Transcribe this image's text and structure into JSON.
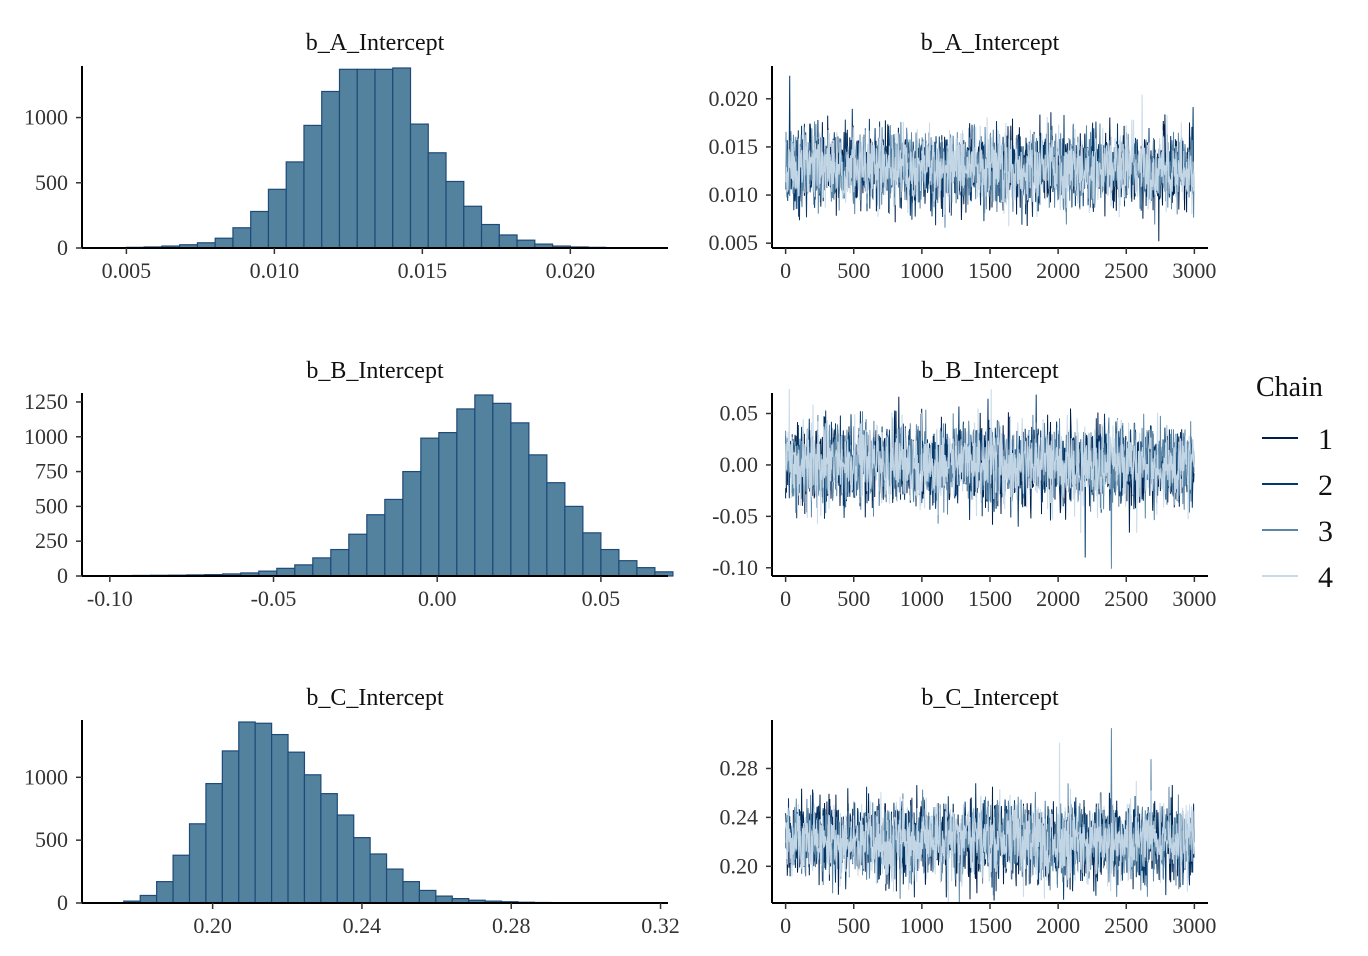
{
  "colors": {
    "hist_fill": "#53829f",
    "hist_border": "#1f4a78",
    "chain_1": "#011f4b",
    "chain_2": "#03396c",
    "chain_3": "#5b86a6",
    "chain_4": "#c8dae9"
  },
  "legend": {
    "title": "Chain",
    "entries": [
      {
        "label": "1",
        "color": "#011f4b"
      },
      {
        "label": "2",
        "color": "#03396c"
      },
      {
        "label": "3",
        "color": "#5b86a6"
      },
      {
        "label": "4",
        "color": "#c8dae9"
      }
    ]
  },
  "chart_data": [
    {
      "type": "bar",
      "title": "b_A_Intercept",
      "bin_start": 0.0044,
      "bin_width": 0.0006,
      "values": [
        3,
        5,
        8,
        15,
        25,
        40,
        75,
        155,
        280,
        450,
        660,
        940,
        1200,
        1370,
        1370,
        1370,
        1380,
        950,
        730,
        510,
        320,
        180,
        100,
        60,
        30,
        15,
        8,
        5,
        3,
        2
      ],
      "xlim": [
        0.0035,
        0.0233
      ],
      "xticks": [
        0.005,
        0.01,
        0.015,
        0.02
      ],
      "xtick_labels": [
        "0.005",
        "0.010",
        "0.015",
        "0.020"
      ],
      "ylim": [
        0,
        1380
      ],
      "yticks": [
        0,
        500,
        1000
      ],
      "ytick_labels": [
        "0",
        "500",
        "1000"
      ]
    },
    {
      "type": "line",
      "title": "b_A_Intercept",
      "xlim": [
        -100,
        3100
      ],
      "xticks": [
        0,
        500,
        1000,
        1500,
        2000,
        2500,
        3000
      ],
      "xtick_labels": [
        "0",
        "500",
        "1000",
        "1500",
        "2000",
        "2500",
        "3000"
      ],
      "ylim": [
        0.0045,
        0.0232
      ],
      "yticks": [
        0.005,
        0.01,
        0.015,
        0.02
      ],
      "ytick_labels": [
        "0.005",
        "0.010",
        "0.015",
        "0.020"
      ],
      "center": 0.0128,
      "sd": 0.002,
      "series": [
        {
          "name": "1",
          "seed": 11
        },
        {
          "name": "2",
          "seed": 23
        },
        {
          "name": "3",
          "seed": 37
        },
        {
          "name": "4",
          "seed": 51
        }
      ],
      "extremes": [
        {
          "chain": "2",
          "x": 30,
          "y": 0.0224
        },
        {
          "chain": "1",
          "x": 2740,
          "y": 0.0052
        }
      ]
    },
    {
      "type": "bar",
      "title": "b_B_Intercept",
      "bin_start": -0.104,
      "bin_width": 0.0055,
      "values": [
        2,
        3,
        4,
        5,
        6,
        8,
        10,
        15,
        22,
        35,
        55,
        80,
        130,
        190,
        300,
        440,
        550,
        750,
        990,
        1030,
        1200,
        1300,
        1240,
        1100,
        870,
        670,
        500,
        310,
        190,
        110,
        60,
        30
      ],
      "xlim": [
        -0.1085,
        0.0705
      ],
      "xticks": [
        -0.1,
        -0.05,
        0.0,
        0.05
      ],
      "xtick_labels": [
        "-0.10",
        "-0.05",
        "0.00",
        "0.05"
      ],
      "ylim": [
        0,
        1300
      ],
      "yticks": [
        0,
        250,
        500,
        750,
        1000,
        1250
      ],
      "ytick_labels": [
        "0",
        "250",
        "500",
        "750",
        "1000",
        "1250"
      ]
    },
    {
      "type": "line",
      "title": "b_B_Intercept",
      "xlim": [
        -100,
        3100
      ],
      "xticks": [
        0,
        500,
        1000,
        1500,
        2000,
        2500,
        3000
      ],
      "xtick_labels": [
        "0",
        "500",
        "1000",
        "1500",
        "2000",
        "2500",
        "3000"
      ],
      "ylim": [
        -0.108,
        0.068
      ],
      "yticks": [
        -0.1,
        -0.05,
        0.0,
        0.05
      ],
      "ytick_labels": [
        "-0.10",
        "-0.05",
        "0.00",
        "0.05"
      ],
      "center": 0.0,
      "sd": 0.02,
      "series": [
        {
          "name": "1",
          "seed": 13
        },
        {
          "name": "2",
          "seed": 29
        },
        {
          "name": "3",
          "seed": 41
        },
        {
          "name": "4",
          "seed": 59
        }
      ],
      "extremes": [
        {
          "chain": "3",
          "x": 2390,
          "y": -0.101
        },
        {
          "chain": "2",
          "x": 2200,
          "y": -0.09
        }
      ]
    },
    {
      "type": "bar",
      "title": "b_C_Intercept",
      "bin_start": 0.1718,
      "bin_width": 0.0044,
      "values": [
        3,
        15,
        60,
        170,
        380,
        630,
        950,
        1210,
        1440,
        1430,
        1340,
        1200,
        1020,
        870,
        700,
        520,
        390,
        270,
        170,
        100,
        55,
        35,
        22,
        15,
        10,
        6,
        4,
        3,
        2,
        2,
        1,
        1,
        1
      ],
      "xlim": [
        0.165,
        0.322
      ],
      "xticks": [
        0.2,
        0.24,
        0.28,
        0.32
      ],
      "xtick_labels": [
        "0.20",
        "0.24",
        "0.28",
        "0.32"
      ],
      "ylim": [
        0,
        1440
      ],
      "yticks": [
        0,
        500,
        1000
      ],
      "ytick_labels": [
        "0",
        "500",
        "1000"
      ]
    },
    {
      "type": "line",
      "title": "b_C_Intercept",
      "xlim": [
        -100,
        3100
      ],
      "xticks": [
        0,
        500,
        1000,
        1500,
        2000,
        2500,
        3000
      ],
      "xtick_labels": [
        "0",
        "500",
        "1000",
        "1500",
        "2000",
        "2500",
        "3000"
      ],
      "ylim": [
        0.17,
        0.318
      ],
      "yticks": [
        0.2,
        0.24,
        0.28
      ],
      "ytick_labels": [
        "0.20",
        "0.24",
        "0.28"
      ],
      "center": 0.221,
      "sd": 0.016,
      "series": [
        {
          "name": "1",
          "seed": 17
        },
        {
          "name": "2",
          "seed": 31
        },
        {
          "name": "3",
          "seed": 43
        },
        {
          "name": "4",
          "seed": 61
        }
      ],
      "extremes": [
        {
          "chain": "3",
          "x": 2390,
          "y": 0.313
        },
        {
          "chain": "4",
          "x": 2010,
          "y": 0.301
        }
      ]
    }
  ]
}
